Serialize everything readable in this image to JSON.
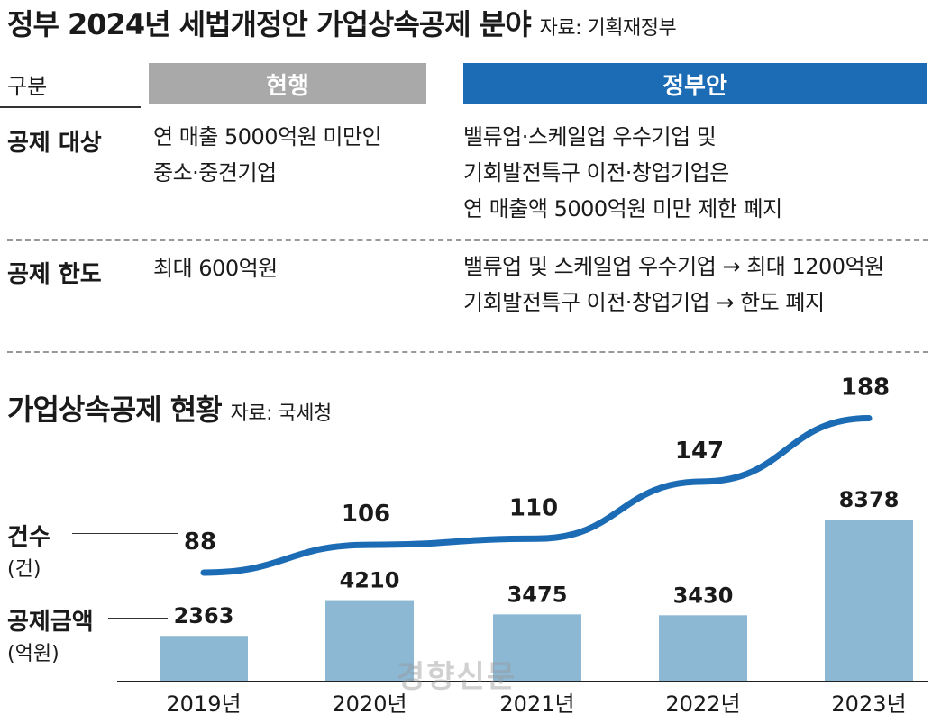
{
  "header": {
    "title": "정부 2024년 세법개정안 가업상속공제 분야",
    "source": "자료: 기획재정부"
  },
  "table": {
    "col_label": "구분",
    "col_current": "현행",
    "col_gov": "정부안",
    "rows": [
      {
        "label": "공제 대상",
        "current": [
          "연 매출 5000억원 미만인",
          "중소·중견기업"
        ],
        "gov": [
          "밸류업·스케일업 우수기업 및",
          "기회발전특구 이전·창업기업은",
          "연 매출액 5000억원 미만 제한 폐지"
        ]
      },
      {
        "label": "공제 한도",
        "current": [
          "최대 600억원"
        ],
        "gov": [
          "밸류업 및 스케일업 우수기업  → 최대 1200억원",
          "기회발전특구 이전·창업기업 → 한도 폐지"
        ]
      }
    ]
  },
  "chart_section": {
    "title": "가업상속공제 현황",
    "source": "자료: 국세청",
    "count_label": "건수",
    "count_unit": "(건)",
    "amount_label": "공제금액",
    "amount_unit": "(억원)"
  },
  "chart_data": {
    "type": "bar",
    "categories": [
      "2019년",
      "2020년",
      "2021년",
      "2022년",
      "2023년"
    ],
    "series": [
      {
        "type": "bar",
        "values": [
          2363,
          4210,
          3475,
          3430,
          8378
        ],
        "color": "#8cb8d4"
      },
      {
        "type": "line",
        "values": [
          88,
          106,
          110,
          147,
          188
        ],
        "color": "#1b6cb5"
      }
    ]
  },
  "watermark": "경향신문"
}
